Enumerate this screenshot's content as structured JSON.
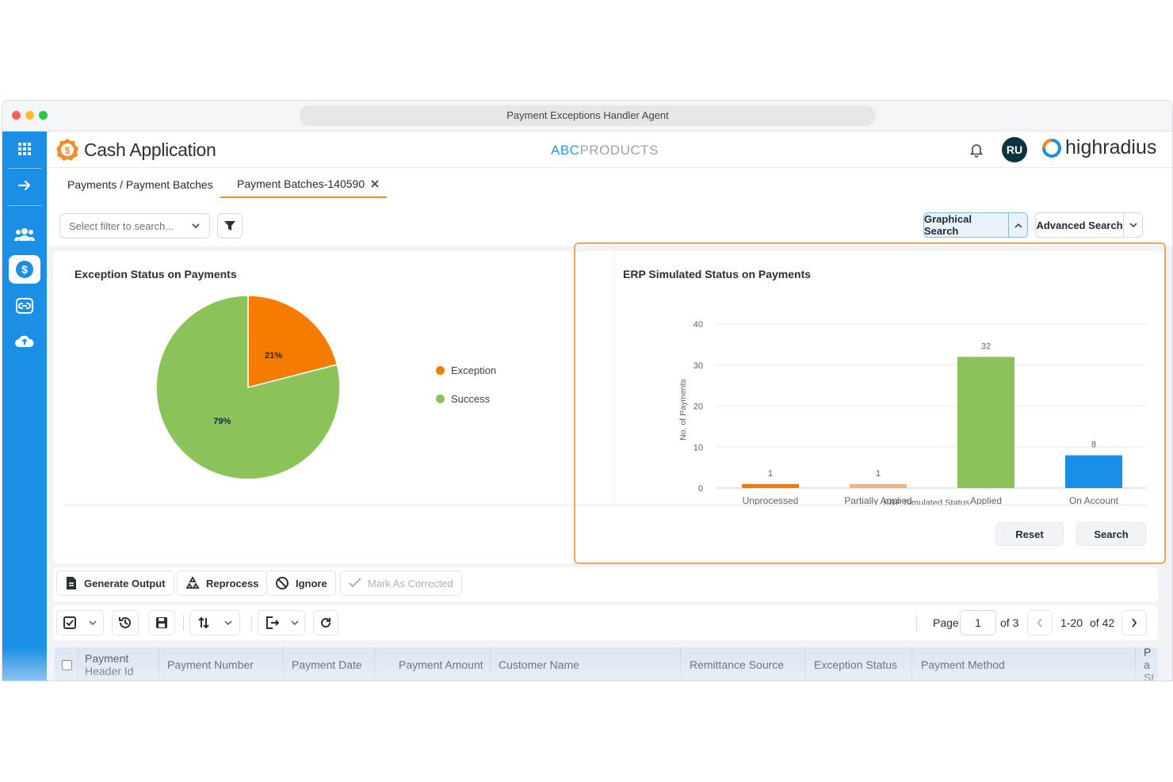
{
  "window": {
    "title": "Payment Exceptions Handler Agent"
  },
  "header": {
    "app_name": "Cash Application",
    "brand_prefix": "ABC",
    "brand_suffix": "PRODUCTS",
    "avatar_initials": "RU",
    "company_logo": "highradius"
  },
  "tabs": [
    {
      "label": "Payments / Payment Batches"
    },
    {
      "label": "Payment Batches-140590",
      "active": true
    }
  ],
  "filter": {
    "placeholder": "Select filter to search..."
  },
  "search_buttons": {
    "graphical": "Graphical Search",
    "advanced": "Advanced Search"
  },
  "pie_panel": {
    "title": "Exception Status on Payments"
  },
  "bar_panel": {
    "title": "ERP Simulated Status on Payments",
    "reset": "Reset",
    "search": "Search"
  },
  "chart_data": [
    {
      "type": "pie",
      "title": "Exception Status on Payments",
      "slices": [
        {
          "label": "Exception",
          "value": 21,
          "display": "21%",
          "color": "#f57c00"
        },
        {
          "label": "Success",
          "value": 79,
          "display": "79%",
          "color": "#8bc25a"
        }
      ],
      "legend_placement": "right"
    },
    {
      "type": "bar",
      "title": "ERP Simulated Status on Payments",
      "categories": [
        "Unprocessed",
        "Partially Applied",
        "Applied",
        "On Account"
      ],
      "values": [
        1,
        1,
        32,
        8
      ],
      "colors": [
        "#f57c00",
        "#f5b27a",
        "#8bc25a",
        "#1890e8"
      ],
      "xlabel": "ERP Simulated Status",
      "ylabel": "No. of Payments",
      "ylim": [
        0,
        40
      ],
      "yticks": [
        0,
        10,
        20,
        30,
        40
      ],
      "grid": true
    }
  ],
  "actions": {
    "generate_output": "Generate Output",
    "reprocess": "Reprocess",
    "ignore": "Ignore",
    "mark_corrected": "Mark As Corrected"
  },
  "pager": {
    "page_label": "Page",
    "page": "1",
    "of_pages": "of 3",
    "range": "1-20",
    "of_total": "of 42"
  },
  "table": {
    "columns": [
      "Payment Header Id",
      "Payment Number",
      "Payment Date",
      "Payment Amount",
      "Customer Name",
      "Remittance Source",
      "Exception Status",
      "Payment Method",
      "Pa St"
    ]
  },
  "icons": {
    "sidebar": [
      "apps-grid-icon",
      "arrow-right-icon",
      "users-icon",
      "dollar-icon",
      "link-icon",
      "cloud-upload-icon"
    ],
    "accent": "#1b8fe6"
  }
}
